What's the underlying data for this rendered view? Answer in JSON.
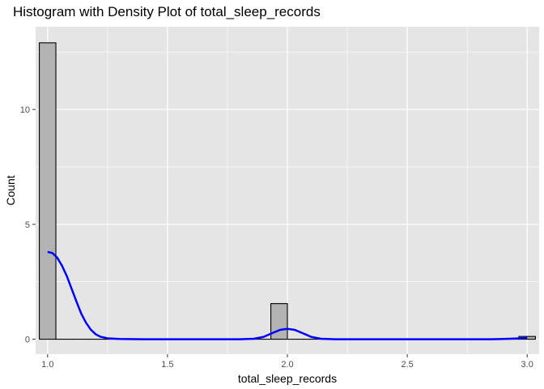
{
  "chart_data": {
    "type": "histogram",
    "title": "Histogram with Density Plot of total_sleep_records",
    "xlabel": "total_sleep_records",
    "ylabel": "Count",
    "xlim": [
      0.95,
      3.05
    ],
    "ylim": [
      -0.65,
      13.6
    ],
    "x_ticks": [
      1.0,
      1.5,
      2.0,
      2.5,
      3.0
    ],
    "x_tick_labels": [
      "1.0",
      "1.5",
      "2.0",
      "2.5",
      "3.0"
    ],
    "y_ticks": [
      0,
      5,
      10
    ],
    "y_tick_labels": [
      "0",
      "5",
      "10"
    ],
    "bin_range": [
      1.0,
      3.0
    ],
    "bins": 30,
    "bin_counts": [
      12.9,
      0,
      0,
      0,
      0,
      0,
      0,
      0,
      0,
      0,
      0,
      0,
      0,
      0,
      1.55,
      0,
      0,
      0,
      0,
      0,
      0,
      0,
      0,
      0,
      0,
      0,
      0,
      0,
      0,
      0.12
    ],
    "bar_fill": "#b3b3b3",
    "bar_outline": "#000000",
    "density_color": "#0000ff",
    "density_curve": [
      [
        1.0,
        3.8
      ],
      [
        1.02,
        3.75
      ],
      [
        1.04,
        3.55
      ],
      [
        1.06,
        3.2
      ],
      [
        1.08,
        2.75
      ],
      [
        1.1,
        2.2
      ],
      [
        1.12,
        1.65
      ],
      [
        1.14,
        1.12
      ],
      [
        1.16,
        0.72
      ],
      [
        1.18,
        0.42
      ],
      [
        1.2,
        0.22
      ],
      [
        1.22,
        0.11
      ],
      [
        1.25,
        0.04
      ],
      [
        1.3,
        0.01
      ],
      [
        1.4,
        0.0
      ],
      [
        1.6,
        0.0
      ],
      [
        1.8,
        0.0
      ],
      [
        1.86,
        0.02
      ],
      [
        1.9,
        0.1
      ],
      [
        1.94,
        0.28
      ],
      [
        1.97,
        0.41
      ],
      [
        2.0,
        0.45
      ],
      [
        2.03,
        0.41
      ],
      [
        2.06,
        0.28
      ],
      [
        2.1,
        0.1
      ],
      [
        2.14,
        0.02
      ],
      [
        2.2,
        0.0
      ],
      [
        2.6,
        0.0
      ],
      [
        2.85,
        0.0
      ],
      [
        2.9,
        0.01
      ],
      [
        2.95,
        0.03
      ],
      [
        3.0,
        0.06
      ]
    ],
    "panel_background": "#e5e5e5",
    "grid": true,
    "grid_color": "#ffffff"
  }
}
